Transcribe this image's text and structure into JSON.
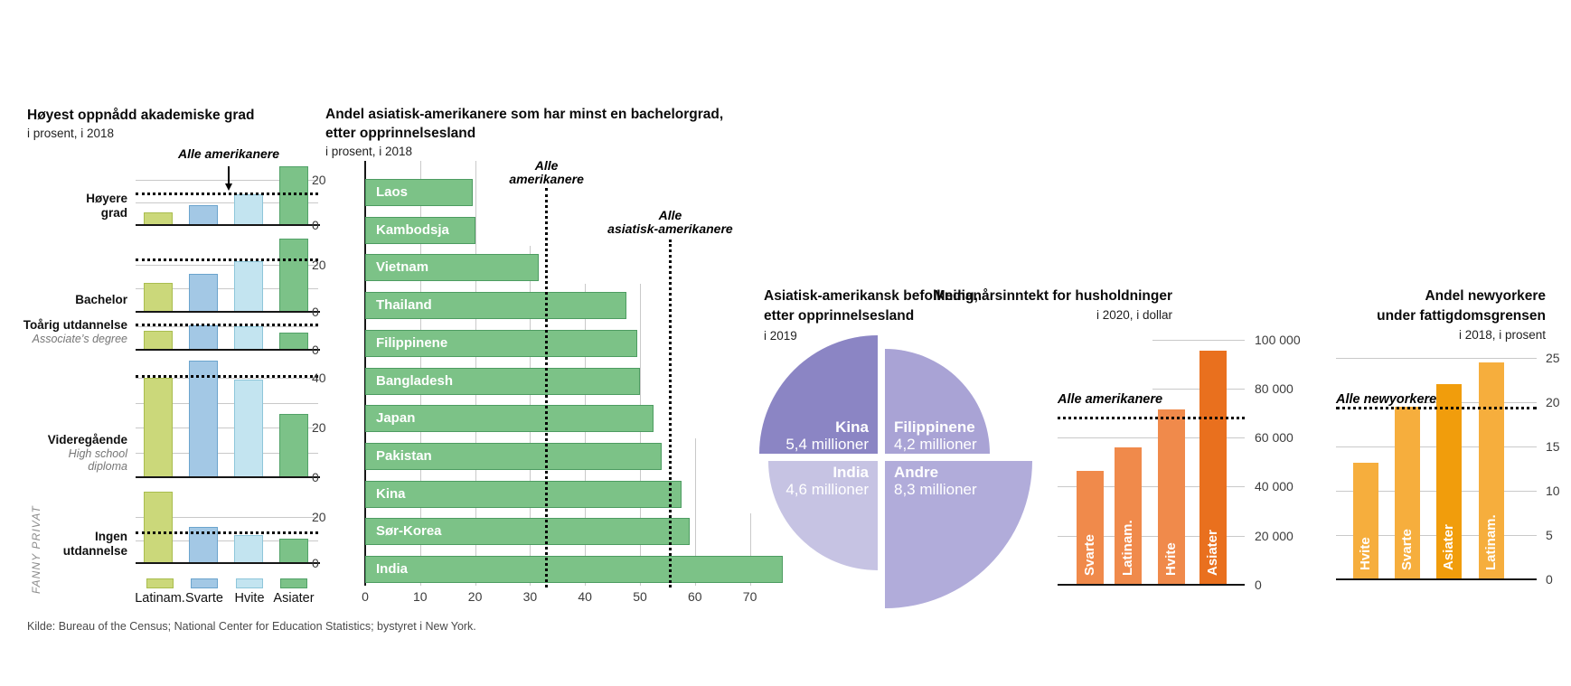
{
  "page": {
    "credit_vertical": "FANNY PRIVAT",
    "source_line": "Kilde: Bureau of the Census; National Center for Education Statistics; bystyret i New York."
  },
  "chart_data": [
    {
      "id": "education",
      "type": "bar",
      "title": "Høyest oppnådd akademiske grad",
      "subtitle": "i prosent, i 2018",
      "reference_line_label": "Alle amerikanere",
      "unit": "prosent",
      "groups": [
        "Latinam.",
        "Svarte",
        "Hvite",
        "Asiater"
      ],
      "group_fill": [
        "#cbd87a",
        "#a3c8e5",
        "#c3e4f0",
        "#7cc288"
      ],
      "group_stroke": [
        "#a9bd4f",
        "#6ba4cd",
        "#8ec6da",
        "#52a268"
      ],
      "panels": [
        {
          "label": "Høyere\ngrad",
          "sublabel": "",
          "values": [
            5.5,
            9,
            13.5,
            26
          ],
          "reference": 13.5,
          "ticks": [
            0,
            20
          ]
        },
        {
          "label": "Bachelor",
          "sublabel": "",
          "values": [
            12.5,
            16,
            21.5,
            31
          ],
          "reference": 22,
          "ticks": [
            0,
            20
          ]
        },
        {
          "label": "Toårig utdannelse",
          "sublabel": "Associate’s degree",
          "values": [
            8,
            10.5,
            10,
            7.5
          ],
          "reference": 10.5,
          "ticks": [
            0
          ]
        },
        {
          "label": "Videregående",
          "sublabel": "High school\ndiploma",
          "values": [
            40,
            47,
            39.5,
            25.5
          ],
          "reference": 40.5,
          "ticks": [
            0,
            20,
            40
          ]
        },
        {
          "label": "Ingen\nutdannelse",
          "sublabel": "",
          "values": [
            31,
            15.5,
            12,
            10.5
          ],
          "reference": 13,
          "ticks": [
            0,
            20
          ]
        }
      ]
    },
    {
      "id": "bachelor-by-origin",
      "type": "bar",
      "orientation": "horizontal",
      "title_lines": [
        "Andel asiatisk-amerikanere som har minst en bachelorgrad,",
        "etter opprinnelsesland"
      ],
      "subtitle": "i prosent, i 2018",
      "bar_fill": "#7cc287",
      "bar_stroke": "#4d9c61",
      "categories": [
        "Laos",
        "Kambodsja",
        "Vietnam",
        "Thailand",
        "Filippinene",
        "Bangladesh",
        "Japan",
        "Pakistan",
        "Kina",
        "Sør-Korea",
        "India"
      ],
      "values": [
        19.5,
        20,
        31.5,
        47.5,
        49.5,
        50,
        52.5,
        54,
        57.5,
        59,
        76
      ],
      "references": [
        {
          "label_lines": [
            "Alle",
            "amerikanere"
          ],
          "value": 33
        },
        {
          "label_lines": [
            "Alle",
            "asiatisk-amerikanere"
          ],
          "value": 55.5
        }
      ],
      "xticks": [
        0,
        10,
        20,
        30,
        40,
        50,
        60,
        70
      ]
    },
    {
      "id": "asian-american-population",
      "type": "pie",
      "title_lines": [
        "Asiatisk-amerikansk befolkning,",
        "etter opprinnelsesland"
      ],
      "subtitle": "i 2019",
      "slices": [
        {
          "label": "Kina",
          "value": 5.4,
          "value_label": "5,4 millioner",
          "color": "#8b85c4",
          "position": "top-left"
        },
        {
          "label": "Filippinene",
          "value": 4.2,
          "value_label": "4,2 millioner",
          "color": "#a9a3d5",
          "position": "top-right"
        },
        {
          "label": "India",
          "value": 4.6,
          "value_label": "4,6 millioner",
          "color": "#c6c3e3",
          "position": "bottom-left"
        },
        {
          "label": "Andre",
          "value": 8.3,
          "value_label": "8,3 millioner",
          "color": "#b1acda",
          "position": "bottom-right"
        }
      ]
    },
    {
      "id": "median-income",
      "type": "bar",
      "title": "Medianårsinntekt for husholdninger",
      "subtitle": "i 2020, i dollar",
      "categories": [
        "Svarte",
        "Latinam.",
        "Hvite",
        "Asiater"
      ],
      "values": [
        46500,
        56000,
        71500,
        95500
      ],
      "bar_colors": [
        "#f08a4b",
        "#f08a4b",
        "#f08a4b",
        "#e9701e"
      ],
      "reference": {
        "label": "Alle amerikanere",
        "value": 68000
      },
      "yticks": [
        {
          "value": 0,
          "label": "0"
        },
        {
          "value": 20000,
          "label": "20 000"
        },
        {
          "value": 40000,
          "label": "40 000"
        },
        {
          "value": 60000,
          "label": "60 000"
        },
        {
          "value": 80000,
          "label": "80 000"
        },
        {
          "value": 100000,
          "label": "100 000"
        }
      ],
      "ylim": [
        0,
        103000
      ]
    },
    {
      "id": "poverty-rate-nyc",
      "type": "bar",
      "title_lines": [
        "Andel newyorkere",
        "under fattigdomsgrensen"
      ],
      "subtitle": "i 2018, i prosent",
      "categories": [
        "Hvite",
        "Svarte",
        "Asiater",
        "Latinam."
      ],
      "values": [
        13.2,
        19.5,
        22,
        24.5
      ],
      "bar_colors": [
        "#f6ae3d",
        "#f6ae3d",
        "#f19d0c",
        "#f6ae3d"
      ],
      "reference": {
        "label": "Alle newyorkere",
        "value": 19.3
      },
      "yticks": [
        {
          "value": 0,
          "label": "0"
        },
        {
          "value": 5,
          "label": "5"
        },
        {
          "value": 10,
          "label": "10"
        },
        {
          "value": 15,
          "label": "15"
        },
        {
          "value": 20,
          "label": "20"
        },
        {
          "value": 25,
          "label": "25"
        }
      ],
      "ylim": [
        0,
        25.5
      ]
    }
  ]
}
